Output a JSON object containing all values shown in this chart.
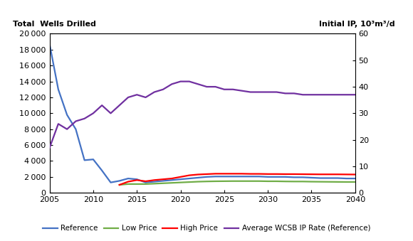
{
  "years": [
    2005,
    2006,
    2007,
    2008,
    2009,
    2010,
    2011,
    2012,
    2013,
    2014,
    2015,
    2016,
    2017,
    2018,
    2019,
    2020,
    2021,
    2022,
    2023,
    2024,
    2025,
    2026,
    2027,
    2028,
    2029,
    2030,
    2031,
    2032,
    2033,
    2034,
    2035,
    2036,
    2037,
    2038,
    2039,
    2040
  ],
  "reference": [
    18700,
    13000,
    9800,
    8000,
    4100,
    4200,
    2800,
    1300,
    1500,
    1800,
    1700,
    1300,
    1400,
    1500,
    1600,
    1700,
    1800,
    1900,
    2000,
    2050,
    2050,
    2050,
    2050,
    2050,
    2050,
    2000,
    2000,
    2000,
    1950,
    1950,
    1900,
    1850,
    1850,
    1850,
    1800,
    1800
  ],
  "low_price": [
    null,
    null,
    null,
    null,
    null,
    null,
    null,
    null,
    1000,
    1100,
    1100,
    1100,
    1150,
    1200,
    1250,
    1300,
    1350,
    1400,
    1430,
    1450,
    1460,
    1470,
    1470,
    1470,
    1470,
    1450,
    1450,
    1430,
    1420,
    1420,
    1400,
    1390,
    1380,
    1370,
    1360,
    1360
  ],
  "high_price": [
    null,
    null,
    null,
    null,
    null,
    null,
    null,
    null,
    1000,
    1400,
    1600,
    1450,
    1600,
    1700,
    1800,
    2000,
    2200,
    2300,
    2350,
    2400,
    2400,
    2400,
    2400,
    2380,
    2380,
    2360,
    2360,
    2350,
    2350,
    2340,
    2330,
    2320,
    2320,
    2320,
    2310,
    2300
  ],
  "avg_wcsb": [
    17,
    26,
    24,
    27,
    28,
    30,
    33,
    30,
    33,
    36,
    37,
    36,
    38,
    39,
    41,
    42,
    42,
    41,
    40,
    40,
    39,
    39,
    38.5,
    38,
    38,
    38,
    38,
    37.5,
    37.5,
    37,
    37,
    37,
    37,
    37,
    37,
    37
  ],
  "reference_color": "#4472C4",
  "low_price_color": "#70AD47",
  "high_price_color": "#FF0000",
  "avg_wcsb_color": "#7030A0",
  "left_ylabel": "Total  Wells Drilled",
  "right_ylabel": "Initial IP, 10³m³/d",
  "ylim_left": [
    0,
    20000
  ],
  "ylim_right": [
    0,
    60
  ],
  "xlim": [
    2005,
    2040
  ],
  "yticks_left": [
    0,
    2000,
    4000,
    6000,
    8000,
    10000,
    12000,
    14000,
    16000,
    18000,
    20000
  ],
  "yticks_right": [
    0,
    10,
    20,
    30,
    40,
    50,
    60
  ],
  "xticks": [
    2005,
    2010,
    2015,
    2020,
    2025,
    2030,
    2035,
    2040
  ],
  "legend_labels": [
    "Reference",
    "Low Price",
    "High Price",
    "Average WCSB IP Rate (Reference)"
  ],
  "background_color": "#ffffff",
  "line_width": 1.6
}
